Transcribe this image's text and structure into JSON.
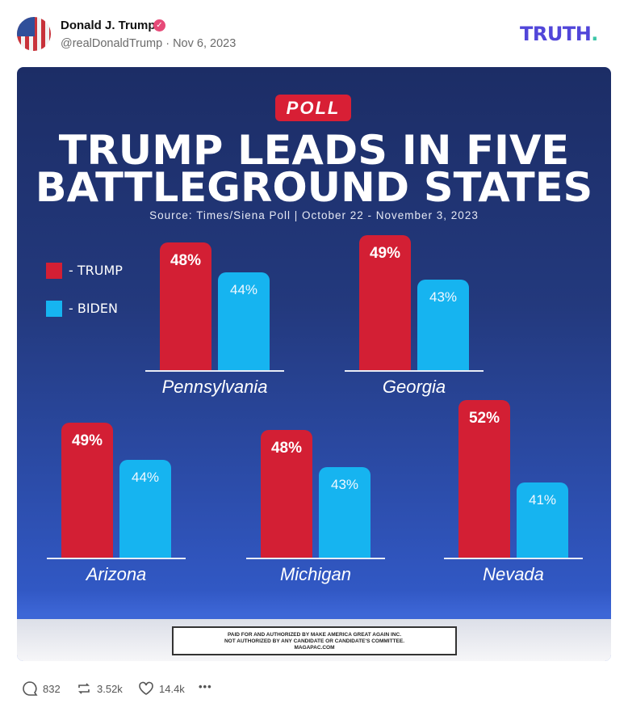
{
  "post": {
    "author": "Donald J. Trump",
    "handle_date": "@realDonaldTrump · Nov 6, 2023",
    "verified": true,
    "logo_text": "TRUTH",
    "logo_dot": "."
  },
  "image": {
    "badge": "POLL",
    "title_line1": "TRUMP LEADS IN FIVE",
    "title_line2": "BATTLEGROUND STATES",
    "source": "Source: Times/Siena Poll | October 22 - November 3, 2023",
    "legend": [
      {
        "label": "- TRUMP",
        "color": "#d31f34"
      },
      {
        "label": "- BIDEN",
        "color": "#16b4f0"
      }
    ],
    "disclaimer": [
      "PAID FOR AND AUTHORIZED BY MAKE AMERICA GREAT AGAIN INC.",
      "NOT AUTHORIZED BY ANY CANDIDATE OR CANDIDATE'S COMMITTEE.",
      "MAGAPAC.COM"
    ]
  },
  "chart_data": {
    "type": "bar",
    "categories": [
      "Pennsylvania",
      "Georgia",
      "Arizona",
      "Michigan",
      "Nevada"
    ],
    "series": [
      {
        "name": "TRUMP",
        "values": [
          48,
          49,
          49,
          48,
          52
        ],
        "labels": [
          "48%",
          "49%",
          "49%",
          "48%",
          "52%"
        ]
      },
      {
        "name": "BIDEN",
        "values": [
          44,
          43,
          44,
          43,
          41
        ],
        "labels": [
          "44%",
          "43%",
          "44%",
          "43%",
          "41%"
        ]
      }
    ]
  },
  "actions": {
    "replies": "832",
    "retruths": "3.52k",
    "likes": "14.4k",
    "more": "•••"
  }
}
